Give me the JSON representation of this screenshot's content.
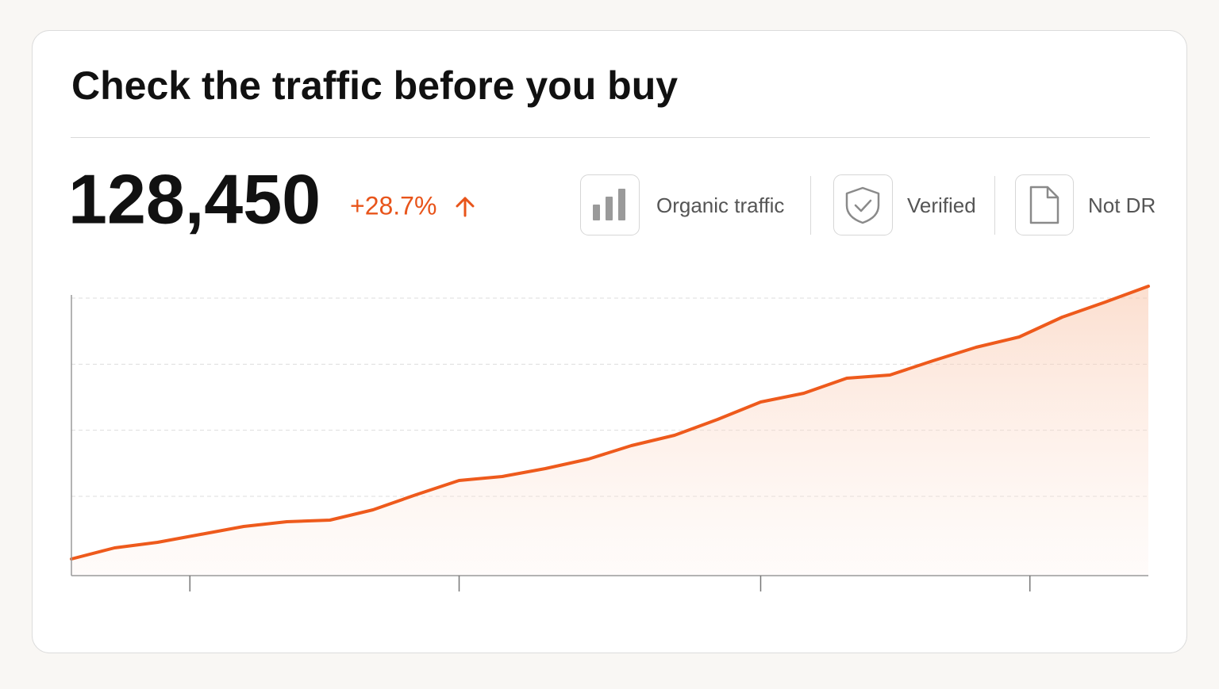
{
  "header": {
    "title": "Check the traffic before you buy"
  },
  "metric": {
    "value": "128,450",
    "change": "+28.7%"
  },
  "badges": [
    {
      "label": "Organic traffic"
    },
    {
      "label": "Verified"
    },
    {
      "label": "Not DR"
    }
  ],
  "chart_data": {
    "type": "line",
    "x": [
      0,
      4,
      8,
      12,
      16,
      20,
      24,
      28,
      32,
      36,
      40,
      44,
      48,
      52,
      56,
      60,
      64,
      68,
      72,
      76,
      80,
      84,
      88,
      92,
      96,
      100
    ],
    "series": [
      {
        "color": "#ee5a1c",
        "values": [
          1.3,
          5.5,
          7.6,
          10.6,
          13.6,
          15.4,
          16,
          19.9,
          25.6,
          31,
          32.5,
          35.5,
          39.1,
          44.2,
          48.1,
          54.1,
          60.7,
          64,
          69.7,
          70.9,
          76.3,
          81.4,
          85.3,
          92.8,
          98.5,
          104.5
        ]
      }
    ],
    "xlim": [
      0,
      100
    ],
    "ylim": [
      -5,
      100
    ],
    "xticks": [
      11,
      36,
      64,
      89
    ],
    "yticks": [
      25,
      50,
      75,
      100
    ],
    "grid": true
  }
}
